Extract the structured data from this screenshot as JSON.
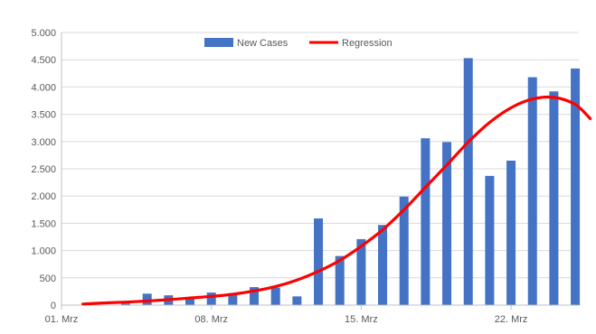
{
  "chart_data": {
    "type": "bar",
    "title": "",
    "xlabel": "",
    "ylabel": "",
    "ylim": [
      0,
      5000
    ],
    "y_ticks": [
      0,
      500,
      1000,
      1500,
      2000,
      2500,
      3000,
      3500,
      4000,
      4500,
      5000
    ],
    "y_tick_labels": [
      "0",
      "500",
      "1.000",
      "1.500",
      "2.000",
      "2.500",
      "3.000",
      "3.500",
      "4.000",
      "4.500",
      "5.000"
    ],
    "x_tick_labels": [
      "01. Mrz",
      "08. Mrz",
      "15. Mrz",
      "22. Mrz"
    ],
    "x_tick_day_index": [
      0,
      7,
      14,
      21
    ],
    "day_count": 25,
    "grid": "horizontal",
    "legend": {
      "position": "top-center",
      "items": [
        {
          "label": "New Cases",
          "kind": "bar",
          "color": "#4472C4"
        },
        {
          "label": "Regression",
          "kind": "line",
          "color": "#FF0000"
        }
      ]
    },
    "series": [
      {
        "name": "New Cases",
        "kind": "bar",
        "color": "#4472C4",
        "values": [
          0,
          10,
          30,
          210,
          180,
          120,
          230,
          220,
          330,
          320,
          160,
          1590,
          900,
          1210,
          1470,
          1990,
          3060,
          2990,
          4530,
          2370,
          2650,
          4180,
          3920,
          4340
        ]
      },
      {
        "name": "Regression",
        "kind": "line",
        "color": "#FF0000",
        "x": [
          1,
          2,
          3,
          4,
          5,
          6,
          7,
          8,
          9,
          10,
          11,
          12,
          13,
          14,
          15,
          16,
          17,
          18,
          19,
          20,
          21,
          22,
          23,
          24,
          24.7
        ],
        "values": [
          20,
          40,
          55,
          75,
          100,
          130,
          160,
          200,
          260,
          340,
          460,
          620,
          820,
          1080,
          1380,
          1750,
          2160,
          2570,
          2990,
          3350,
          3620,
          3780,
          3810,
          3680,
          3420
        ]
      }
    ]
  }
}
